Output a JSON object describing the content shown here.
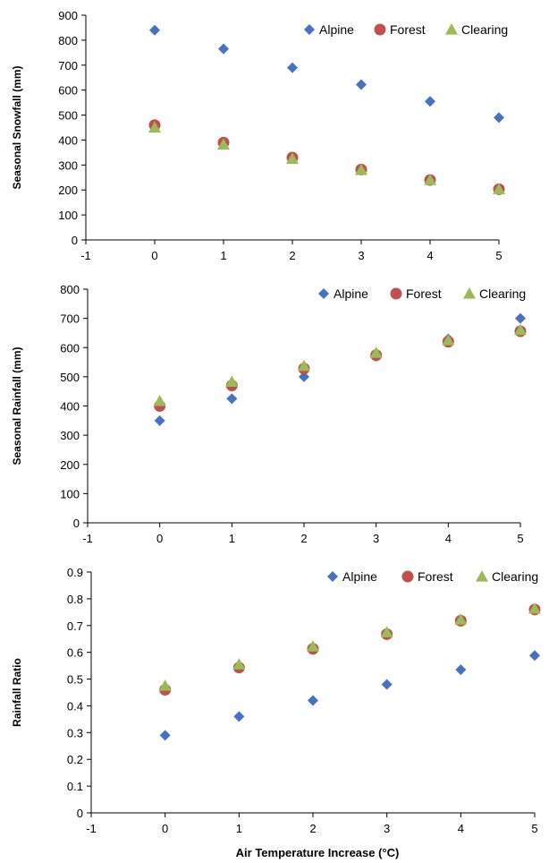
{
  "series_styles": {
    "Alpine": {
      "color": "#4472C4",
      "marker": "diamond"
    },
    "Forest": {
      "color": "#C0504D",
      "marker": "circle"
    },
    "Clearing": {
      "color": "#9BBB59",
      "marker": "triangle"
    }
  },
  "chart_data": [
    {
      "type": "scatter",
      "title": "",
      "xlabel": "",
      "ylabel": "Seasonal Snowfall (mm)",
      "xlim": [
        -1,
        5
      ],
      "ylim": [
        0,
        900
      ],
      "xticks": [
        -1,
        0,
        1,
        2,
        3,
        4,
        5
      ],
      "yticks": [
        0,
        100,
        200,
        300,
        400,
        500,
        600,
        700,
        800,
        900
      ],
      "legend": "top-right",
      "grid": false,
      "series": [
        {
          "name": "Alpine",
          "x": [
            0,
            1,
            2,
            3,
            4,
            5
          ],
          "y": [
            840,
            765,
            690,
            622,
            555,
            490
          ]
        },
        {
          "name": "Forest",
          "x": [
            0,
            1,
            2,
            3,
            4,
            5
          ],
          "y": [
            460,
            390,
            330,
            282,
            240,
            203
          ]
        },
        {
          "name": "Clearing",
          "x": [
            0,
            1,
            2,
            3,
            4,
            5
          ],
          "y": [
            450,
            382,
            325,
            280,
            240,
            203
          ]
        }
      ]
    },
    {
      "type": "scatter",
      "title": "",
      "xlabel": "",
      "ylabel": "Seasonal Rainfall (mm)",
      "xlim": [
        -1,
        5
      ],
      "ylim": [
        0,
        800
      ],
      "xticks": [
        -1,
        0,
        1,
        2,
        3,
        4,
        5
      ],
      "yticks": [
        0,
        100,
        200,
        300,
        400,
        500,
        600,
        700,
        800
      ],
      "legend": "top-right",
      "grid": false,
      "series": [
        {
          "name": "Alpine",
          "x": [
            0,
            1,
            2,
            3,
            4,
            5
          ],
          "y": [
            350,
            425,
            500,
            570,
            630,
            700
          ]
        },
        {
          "name": "Forest",
          "x": [
            0,
            1,
            2,
            3,
            4,
            5
          ],
          "y": [
            400,
            470,
            528,
            574,
            620,
            656
          ]
        },
        {
          "name": "Clearing",
          "x": [
            0,
            1,
            2,
            3,
            4,
            5
          ],
          "y": [
            417,
            483,
            537,
            582,
            625,
            660
          ]
        }
      ]
    },
    {
      "type": "scatter",
      "title": "",
      "xlabel": "Air Temperature Increase (°C)",
      "ylabel": "Rainfall Ratio",
      "xlim": [
        -1,
        5
      ],
      "ylim": [
        0,
        0.9
      ],
      "xticks": [
        -1,
        0,
        1,
        2,
        3,
        4,
        5
      ],
      "yticks": [
        0,
        0.1,
        0.2,
        0.3,
        0.4,
        0.5,
        0.6,
        0.7,
        0.8,
        0.9
      ],
      "legend": "top-right",
      "grid": false,
      "series": [
        {
          "name": "Alpine",
          "x": [
            0,
            1,
            2,
            3,
            4,
            5
          ],
          "y": [
            0.29,
            0.36,
            0.42,
            0.48,
            0.535,
            0.588
          ]
        },
        {
          "name": "Forest",
          "x": [
            0,
            1,
            2,
            3,
            4,
            5
          ],
          "y": [
            0.46,
            0.543,
            0.613,
            0.668,
            0.718,
            0.76
          ]
        },
        {
          "name": "Clearing",
          "x": [
            0,
            1,
            2,
            3,
            4,
            5
          ],
          "y": [
            0.475,
            0.555,
            0.622,
            0.675,
            0.722,
            0.763
          ]
        }
      ]
    }
  ]
}
